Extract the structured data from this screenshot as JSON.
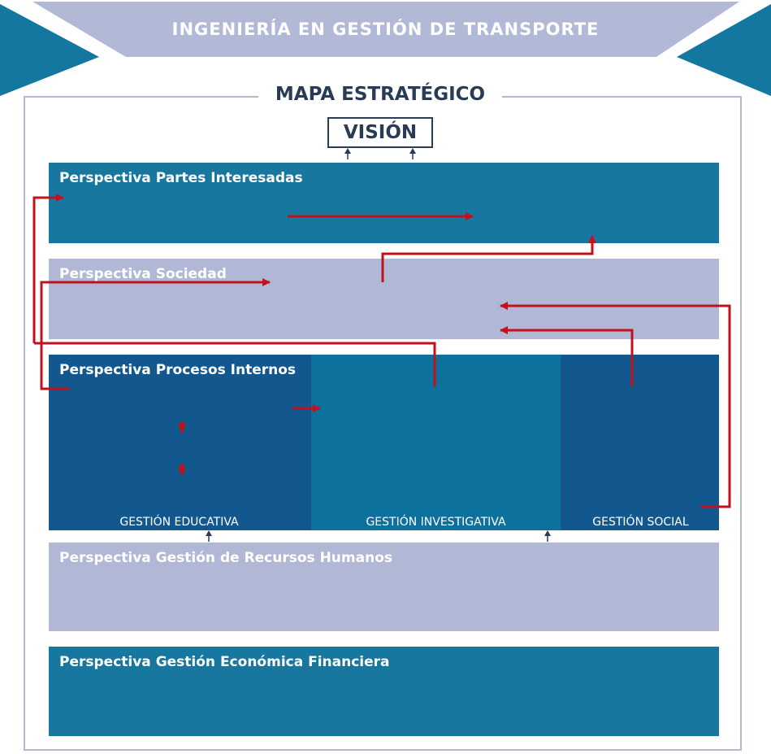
{
  "header": {
    "title": "INGENIERÍA EN GESTIÓN DE TRANSPORTE"
  },
  "map": {
    "title": "MAPA ESTRATÉGICO",
    "vision": "VISIÓN"
  },
  "perspectives": {
    "stakeholders": "Perspectiva Partes Interesadas",
    "society": "Perspectiva Sociedad",
    "internal": "Perspectiva Procesos Internos",
    "hr": "Perspectiva Gestión de Recursos Humanos",
    "finance": "Perspectiva Gestión Económica Financiera"
  },
  "processes": {
    "educational": "GESTIÓN EDUCATIVA",
    "research": "GESTIÓN INVESTIGATIVA",
    "social": "GESTIÓN SOCIAL"
  },
  "colors": {
    "banner": "#b2b9d6",
    "corner": "#1477a0",
    "teal": "#18779f",
    "lavender": "#b0b8d5",
    "navy": "#12588f",
    "mid_teal": "#0d719e",
    "arrow_red": "#c3111c",
    "dark_text": "#2a3b55"
  }
}
